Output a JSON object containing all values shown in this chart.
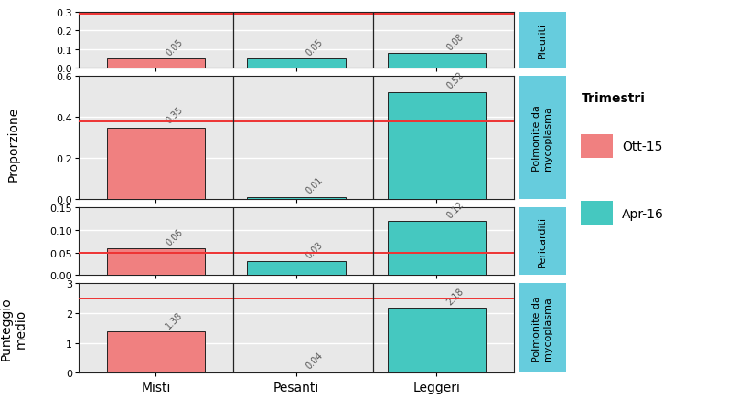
{
  "categories": [
    "Misti",
    "Pesanti",
    "Leggeri"
  ],
  "panels": [
    {
      "label": "Pleuriti",
      "ylim": [
        0.0,
        0.3
      ],
      "yticks": [
        0.0,
        0.1,
        0.2,
        0.3
      ],
      "hline": 0.29,
      "values_oct": [
        0.05,
        null,
        null
      ],
      "values_apr": [
        null,
        0.05,
        0.08
      ],
      "bar_labels_oct": [
        "0.05",
        null,
        null
      ],
      "bar_labels_apr": [
        null,
        "0.05",
        "0.08"
      ]
    },
    {
      "label": "Polmonite da\nmycoplasma",
      "ylim": [
        0.0,
        0.6
      ],
      "yticks": [
        0.0,
        0.2,
        0.4,
        0.6
      ],
      "hline": 0.38,
      "values_oct": [
        0.35,
        null,
        null
      ],
      "values_apr": [
        null,
        0.01,
        0.52
      ],
      "bar_labels_oct": [
        "0.35",
        null,
        null
      ],
      "bar_labels_apr": [
        null,
        "0.01",
        "0.52"
      ]
    },
    {
      "label": "Pericarditi",
      "ylim": [
        0.0,
        0.15
      ],
      "yticks": [
        0.0,
        0.05,
        0.1,
        0.15
      ],
      "hline": 0.05,
      "values_oct": [
        0.06,
        null,
        null
      ],
      "values_apr": [
        null,
        0.03,
        0.12
      ],
      "bar_labels_oct": [
        "0.06",
        null,
        null
      ],
      "bar_labels_apr": [
        null,
        "0.03",
        "0.12"
      ]
    },
    {
      "label": "Polmonite da\nmycoplasma",
      "ylim": [
        0.0,
        3.0
      ],
      "yticks": [
        0,
        1,
        2,
        3
      ],
      "hline": 2.5,
      "values_oct": [
        1.38,
        null,
        null
      ],
      "values_apr": [
        null,
        0.04,
        2.18
      ],
      "bar_labels_oct": [
        "1.38",
        null,
        null
      ],
      "bar_labels_apr": [
        null,
        "0.04",
        "2.18"
      ]
    }
  ],
  "ylabel_top": "Proporzione",
  "ylabel_bottom": "Punteggio\nmedio",
  "color_oct": "#F08080",
  "color_apr": "#45C8C0",
  "hline_color": "#EE3333",
  "panel_label_bg": "#66CCDD",
  "background_color": "#E8E8E8",
  "bar_border_color": "#222222",
  "grid_color": "#FFFFFF",
  "legend_title": "Trimestri",
  "legend_oct": "Ott-15",
  "legend_apr": "Apr-16"
}
